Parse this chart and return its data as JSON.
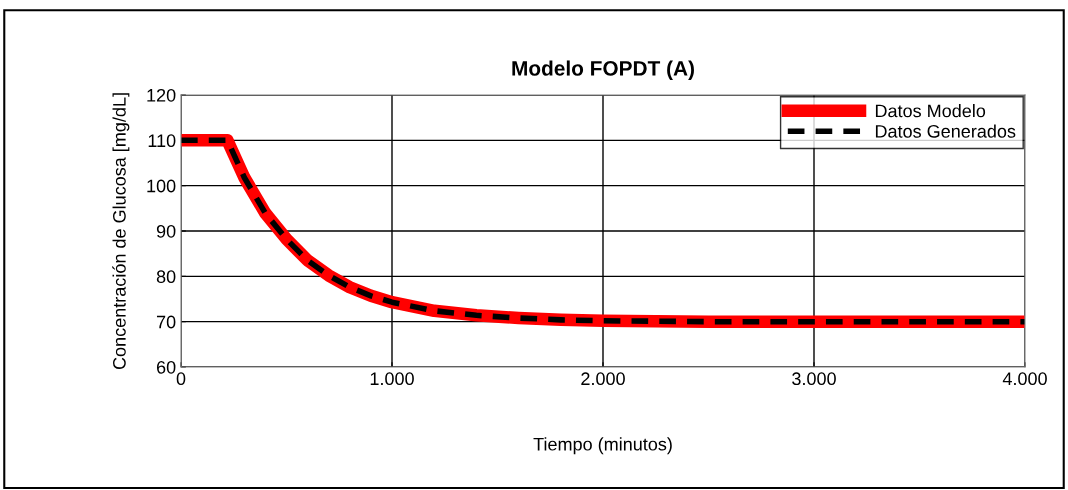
{
  "chart_data": {
    "type": "line",
    "title": "Modelo FOPDT (A)",
    "xlabel": "Tiempo (minutos)",
    "ylabel": "Concentración de Glucosa [mg/dL]",
    "x": [
      0,
      100,
      220,
      300,
      400,
      500,
      600,
      700,
      800,
      900,
      1000,
      1200,
      1400,
      1600,
      1800,
      2000,
      2500,
      3000,
      3500,
      4000
    ],
    "series": [
      {
        "name": "Datos Modelo",
        "color": "#ff0000",
        "line_style": "solid",
        "values": [
          110,
          110,
          110,
          101.8,
          93.9,
          88.2,
          83.5,
          80.2,
          77.6,
          75.7,
          74.3,
          72.4,
          71.4,
          70.8,
          70.4,
          70.2,
          70,
          70,
          70,
          70
        ]
      },
      {
        "name": "Datos Generados",
        "color": "#000000",
        "line_style": "dashed",
        "values": [
          110,
          110,
          110,
          101.8,
          93.9,
          88.2,
          83.5,
          80.2,
          77.6,
          75.7,
          74.3,
          72.4,
          71.4,
          70.8,
          70.4,
          70.2,
          70,
          70,
          70,
          70
        ]
      }
    ],
    "xlim": [
      0,
      4000
    ],
    "xticks": [
      0,
      {
        "value": 1000,
        "label": "1.000"
      },
      {
        "value": 2000,
        "label": "2.000"
      },
      {
        "value": 3000,
        "label": "3.000"
      },
      {
        "value": 4000,
        "label": "4.000"
      }
    ],
    "ylim": [
      60,
      120
    ],
    "yticks": [
      60,
      70,
      80,
      90,
      100,
      110,
      120
    ],
    "grid": true,
    "legend": "top right",
    "marker": "none"
  }
}
